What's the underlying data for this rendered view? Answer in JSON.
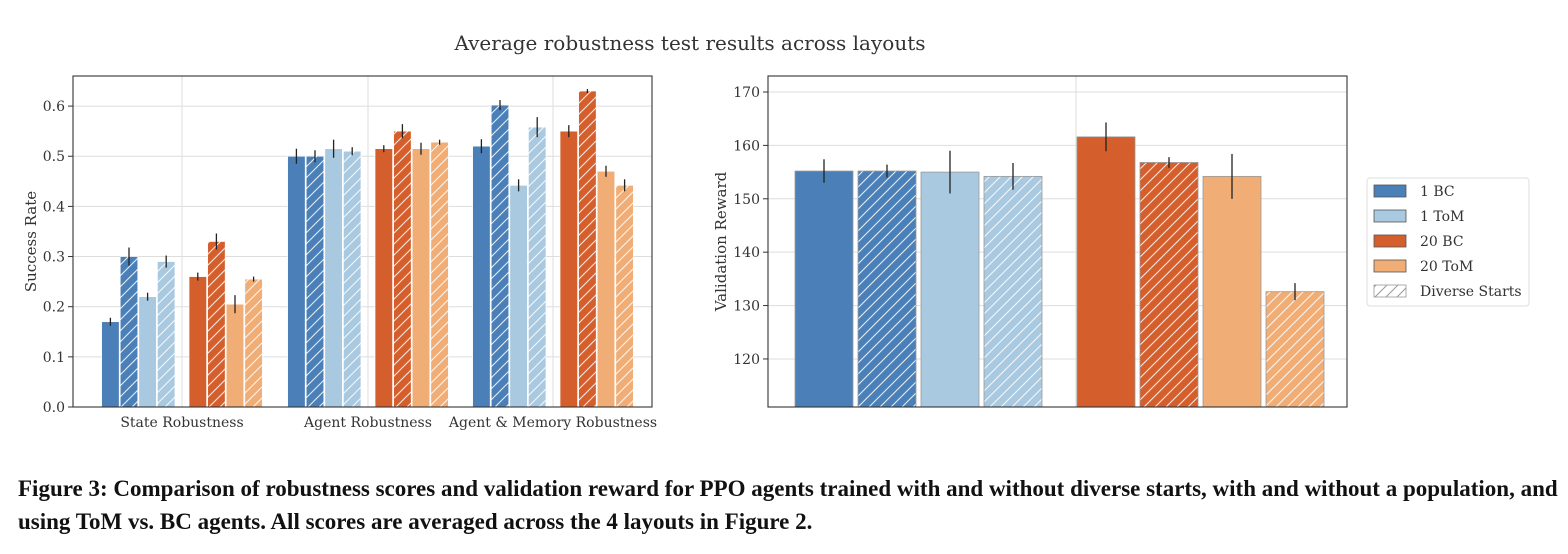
{
  "suptitle": "Average robustness test results across layouts",
  "caption": "Figure 3: Comparison of robustness scores and validation reward for PPO agents trained with and without diverse starts, with and without a population, and using ToM vs. BC agents. All scores are averaged across the 4 layouts in Figure 2.",
  "colors": {
    "1 BC": "#4a7fb8",
    "1 ToM": "#a8c9e0",
    "20 BC": "#d45f2c",
    "20 ToM": "#f0ad76"
  },
  "legend": {
    "entries": [
      {
        "label": "1 BC",
        "color_key": "1 BC",
        "hatch": false
      },
      {
        "label": "1 ToM",
        "color_key": "1 ToM",
        "hatch": false
      },
      {
        "label": "20 BC",
        "color_key": "20 BC",
        "hatch": false
      },
      {
        "label": "20 ToM",
        "color_key": "20 ToM",
        "hatch": false
      },
      {
        "label": "Diverse Starts",
        "color_key": "",
        "hatch": true
      }
    ],
    "placement": "right"
  },
  "chart_data": [
    {
      "type": "bar",
      "ylabel": "Success Rate",
      "xlabel": "",
      "ylim": [
        0,
        0.66
      ],
      "yticks": [
        0.0,
        0.1,
        0.2,
        0.3,
        0.4,
        0.5,
        0.6
      ],
      "grid": true,
      "categories": [
        "State Robustness",
        "Agent Robustness",
        "Agent & Memory Robustness"
      ],
      "bars": [
        {
          "category": 0,
          "group": "1 BC",
          "hatch": false,
          "value": 0.17,
          "err": 0.008
        },
        {
          "category": 0,
          "group": "1 BC",
          "hatch": true,
          "value": 0.3,
          "err": 0.018
        },
        {
          "category": 0,
          "group": "1 ToM",
          "hatch": false,
          "value": 0.22,
          "err": 0.008
        },
        {
          "category": 0,
          "group": "1 ToM",
          "hatch": true,
          "value": 0.29,
          "err": 0.012
        },
        {
          "category": 0,
          "group": "20 BC",
          "hatch": false,
          "value": 0.26,
          "err": 0.008
        },
        {
          "category": 0,
          "group": "20 BC",
          "hatch": true,
          "value": 0.33,
          "err": 0.016
        },
        {
          "category": 0,
          "group": "20 ToM",
          "hatch": false,
          "value": 0.205,
          "err": 0.018
        },
        {
          "category": 0,
          "group": "20 ToM",
          "hatch": true,
          "value": 0.255,
          "err": 0.005
        },
        {
          "category": 1,
          "group": "1 BC",
          "hatch": false,
          "value": 0.5,
          "err": 0.015
        },
        {
          "category": 1,
          "group": "1 BC",
          "hatch": true,
          "value": 0.5,
          "err": 0.012
        },
        {
          "category": 1,
          "group": "1 ToM",
          "hatch": false,
          "value": 0.515,
          "err": 0.018
        },
        {
          "category": 1,
          "group": "1 ToM",
          "hatch": true,
          "value": 0.51,
          "err": 0.008
        },
        {
          "category": 1,
          "group": "20 BC",
          "hatch": false,
          "value": 0.515,
          "err": 0.007
        },
        {
          "category": 1,
          "group": "20 BC",
          "hatch": true,
          "value": 0.55,
          "err": 0.014
        },
        {
          "category": 1,
          "group": "20 ToM",
          "hatch": false,
          "value": 0.515,
          "err": 0.012
        },
        {
          "category": 1,
          "group": "20 ToM",
          "hatch": true,
          "value": 0.528,
          "err": 0.005
        },
        {
          "category": 2,
          "group": "1 BC",
          "hatch": false,
          "value": 0.52,
          "err": 0.014
        },
        {
          "category": 2,
          "group": "1 BC",
          "hatch": true,
          "value": 0.602,
          "err": 0.01
        },
        {
          "category": 2,
          "group": "1 ToM",
          "hatch": false,
          "value": 0.442,
          "err": 0.012
        },
        {
          "category": 2,
          "group": "1 ToM",
          "hatch": true,
          "value": 0.558,
          "err": 0.02
        },
        {
          "category": 2,
          "group": "20 BC",
          "hatch": false,
          "value": 0.55,
          "err": 0.012
        },
        {
          "category": 2,
          "group": "20 BC",
          "hatch": true,
          "value": 0.63,
          "err": 0.004
        },
        {
          "category": 2,
          "group": "20 ToM",
          "hatch": false,
          "value": 0.47,
          "err": 0.011
        },
        {
          "category": 2,
          "group": "20 ToM",
          "hatch": true,
          "value": 0.442,
          "err": 0.012
        }
      ]
    },
    {
      "type": "bar",
      "ylabel": "Validation Reward",
      "xlabel": "",
      "ylim": [
        111,
        173
      ],
      "yticks": [
        120,
        130,
        140,
        150,
        160,
        170
      ],
      "grid": true,
      "categories": [],
      "bars": [
        {
          "group": "1 BC",
          "hatch": false,
          "value": 155.2,
          "err": 2.2
        },
        {
          "group": "1 BC",
          "hatch": true,
          "value": 155.2,
          "err": 1.2
        },
        {
          "group": "1 ToM",
          "hatch": false,
          "value": 155.0,
          "err": 4.0
        },
        {
          "group": "1 ToM",
          "hatch": true,
          "value": 154.2,
          "err": 2.5
        },
        {
          "group": "20 BC",
          "hatch": false,
          "value": 161.6,
          "err": 2.7
        },
        {
          "group": "20 BC",
          "hatch": true,
          "value": 156.8,
          "err": 1.0
        },
        {
          "group": "20 ToM",
          "hatch": false,
          "value": 154.2,
          "err": 4.2
        },
        {
          "group": "20 ToM",
          "hatch": true,
          "value": 132.6,
          "err": 1.6
        }
      ]
    }
  ]
}
